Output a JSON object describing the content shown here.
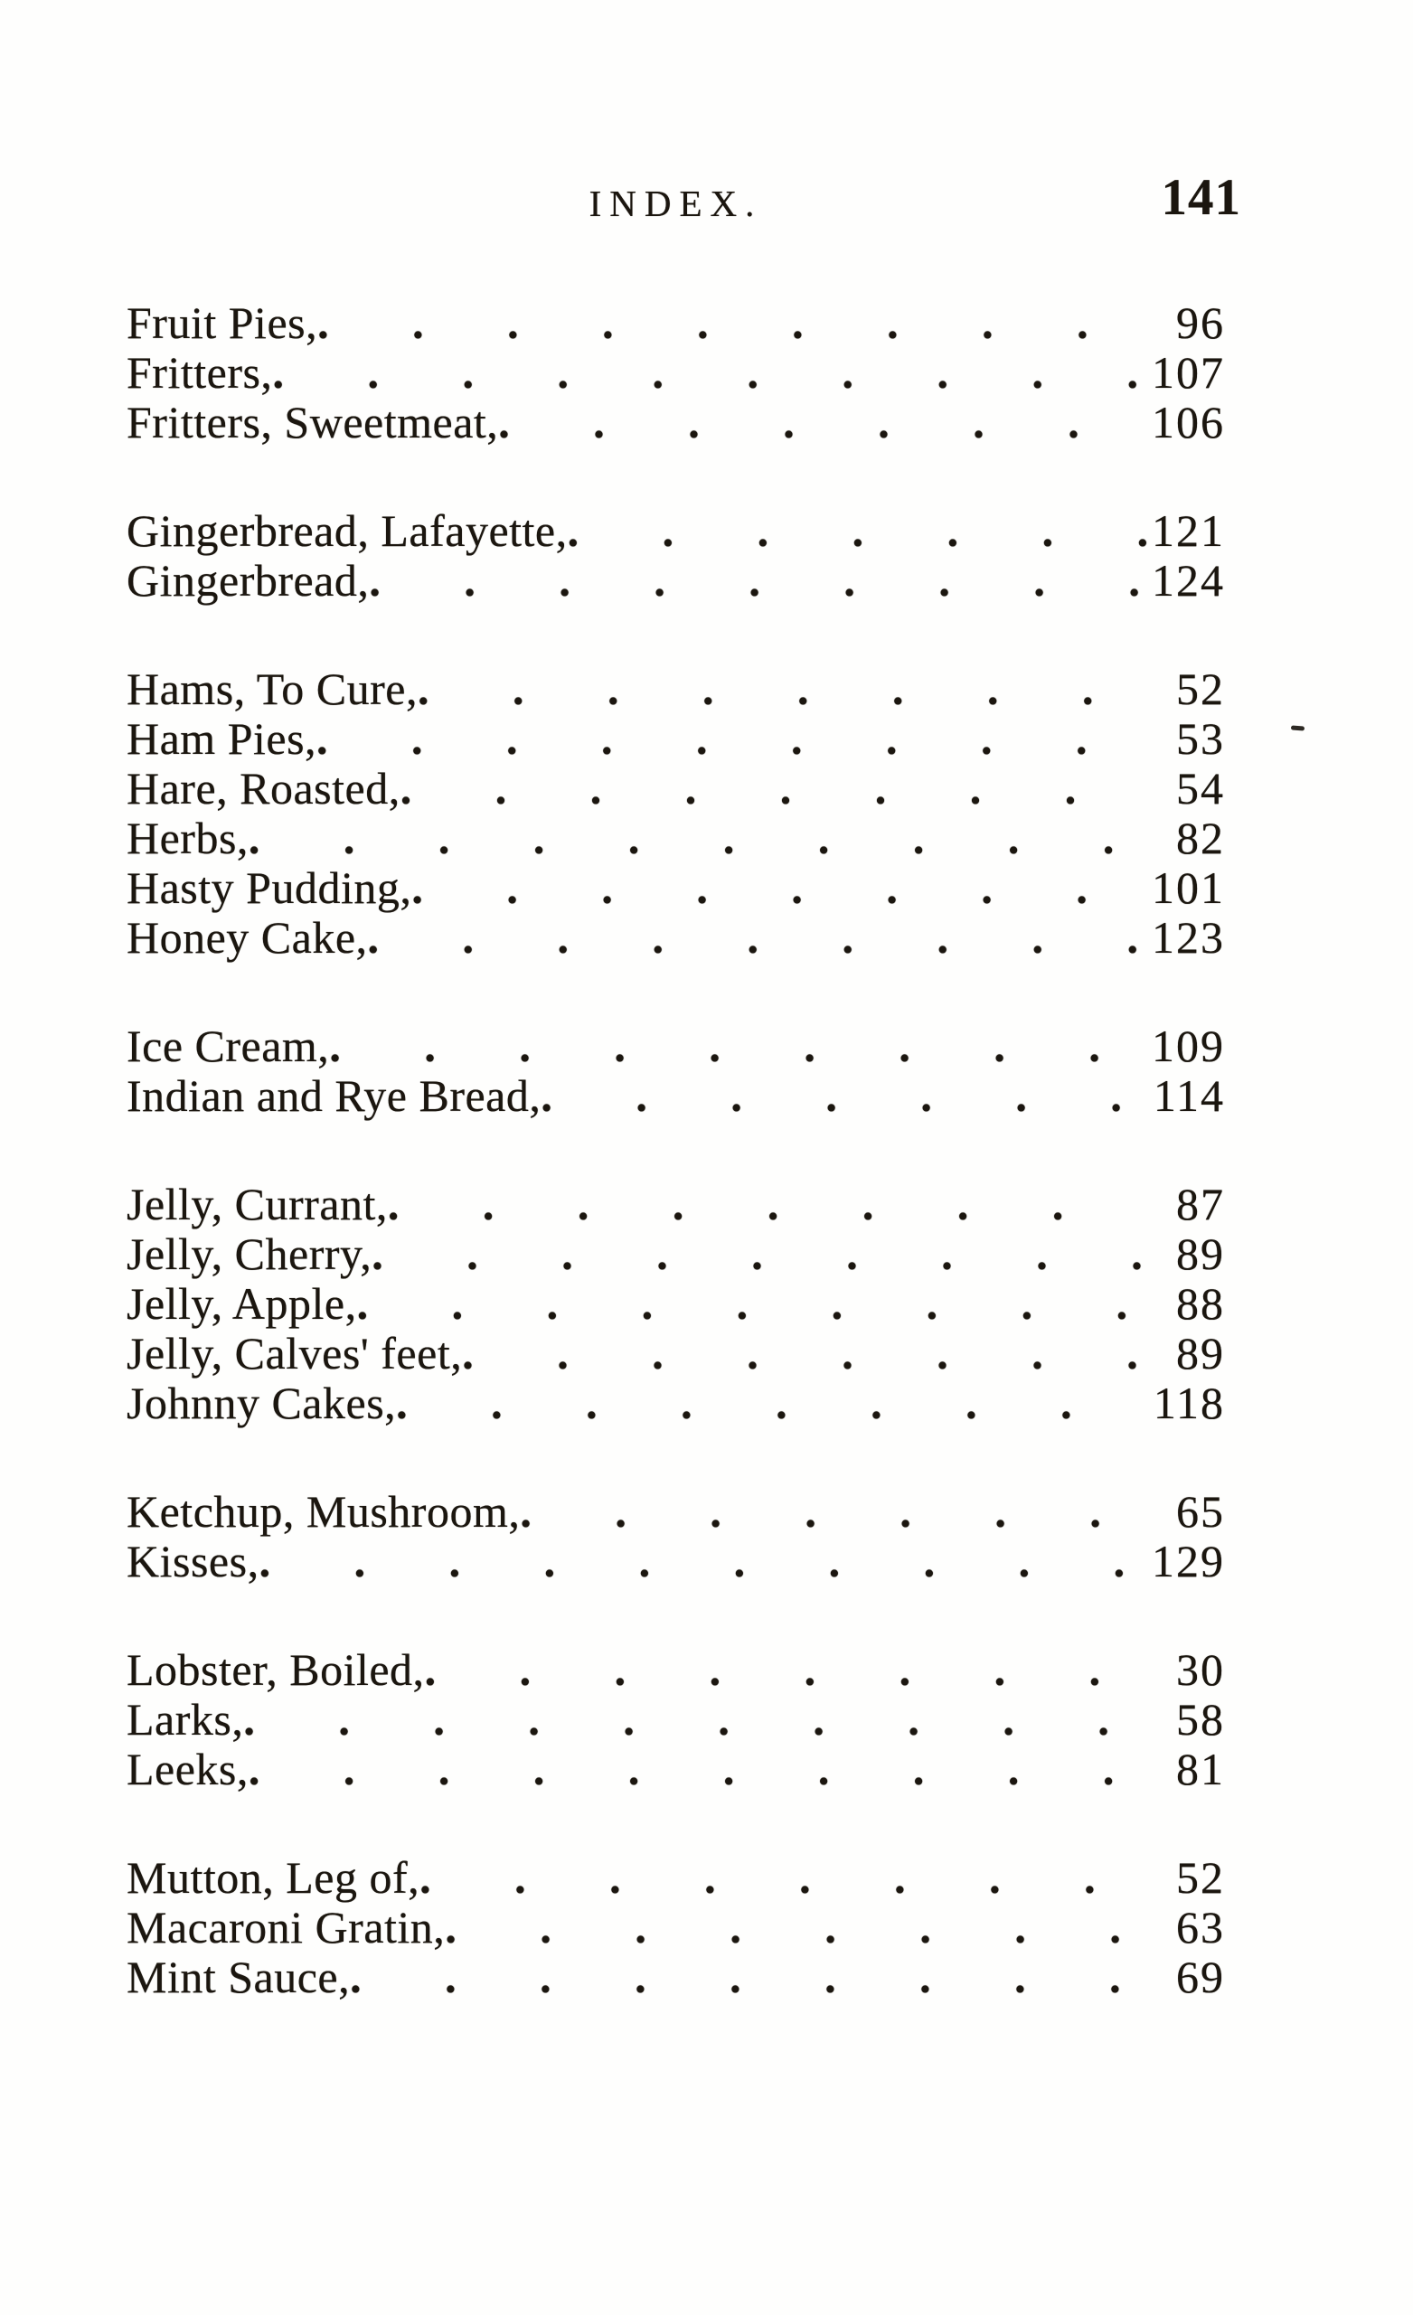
{
  "colors": {
    "ink": "#1b160f",
    "paper": "#fefefd"
  },
  "header": {
    "title": "INDEX.",
    "page_number": "141"
  },
  "index": {
    "sections": [
      {
        "entries": [
          {
            "label": "Fruit Pies,",
            "page": "96"
          },
          {
            "label": "Fritters,",
            "page": "107"
          },
          {
            "label": "Fritters, Sweetmeat,",
            "page": "106"
          }
        ]
      },
      {
        "entries": [
          {
            "label": "Gingerbread, Lafayette,",
            "page": "121"
          },
          {
            "label": "Gingerbread,",
            "page": "124"
          }
        ]
      },
      {
        "entries": [
          {
            "label": "Hams, To Cure,",
            "page": "52"
          },
          {
            "label": "Ham Pies,",
            "page": "53"
          },
          {
            "label": "Hare, Roasted,",
            "page": "54"
          },
          {
            "label": "Herbs,",
            "page": "82"
          },
          {
            "label": "Hasty Pudding,",
            "page": "101"
          },
          {
            "label": "Honey Cake,",
            "page": "123"
          }
        ]
      },
      {
        "entries": [
          {
            "label": "Ice Cream,",
            "page": "109"
          },
          {
            "label": "Indian and Rye Bread,",
            "page": "114"
          }
        ]
      },
      {
        "entries": [
          {
            "label": "Jelly, Currant,",
            "page": "87"
          },
          {
            "label": "Jelly, Cherry,",
            "page": "89"
          },
          {
            "label": "Jelly, Apple,",
            "page": "88"
          },
          {
            "label": "Jelly, Calves' feet,",
            "page": "89"
          },
          {
            "label": "Johnny Cakes,",
            "page": "118"
          }
        ]
      },
      {
        "entries": [
          {
            "label": "Ketchup, Mushroom,",
            "page": "65"
          },
          {
            "label": "Kisses,",
            "page": "129"
          }
        ]
      },
      {
        "entries": [
          {
            "label": "Lobster, Boiled,",
            "page": "30"
          },
          {
            "label": "Larks,",
            "page": "58"
          },
          {
            "label": "Leeks,",
            "page": "81"
          }
        ]
      },
      {
        "entries": [
          {
            "label": "Mutton, Leg of,",
            "page": "52"
          },
          {
            "label": "Macaroni Gratin,",
            "page": "63"
          },
          {
            "label": "Mint Sauce,",
            "page": "69"
          }
        ]
      }
    ]
  }
}
